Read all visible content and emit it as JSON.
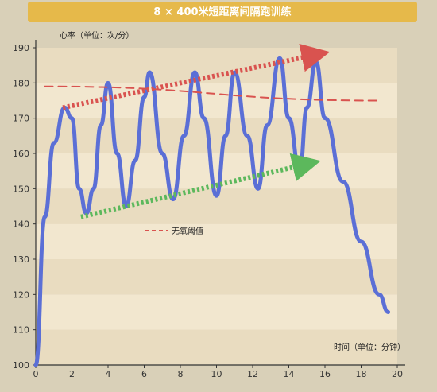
{
  "chart_data": {
    "type": "line",
    "title": "8 × 400米短距离间隔跑训练",
    "xlabel": "时间（单位：分钟）",
    "ylabel": "心率（单位：次/分）",
    "xlim": [
      0,
      20
    ],
    "ylim": [
      100,
      190
    ],
    "x_ticks": [
      "0",
      "2",
      "4",
      "6",
      "8",
      "10",
      "12",
      "14",
      "16",
      "18",
      "20"
    ],
    "y_ticks": [
      "100",
      "110",
      "120",
      "130",
      "140",
      "150",
      "160",
      "170",
      "180",
      "190"
    ],
    "grid": "horizontal bands",
    "legend": [
      {
        "label": "无氧阈值",
        "color": "#d9534f",
        "style": "dashed"
      }
    ],
    "series": [
      {
        "color": "#5b6fd6",
        "points": [
          [
            0.0,
            100
          ],
          [
            0.5,
            142
          ],
          [
            1.0,
            163
          ],
          [
            1.6,
            173
          ],
          [
            2.0,
            170
          ],
          [
            2.4,
            150
          ],
          [
            2.8,
            143
          ],
          [
            3.2,
            150
          ],
          [
            3.6,
            168
          ],
          [
            4.0,
            180
          ],
          [
            4.5,
            160
          ],
          [
            5.0,
            145
          ],
          [
            5.5,
            158
          ],
          [
            6.0,
            176
          ],
          [
            6.3,
            183
          ],
          [
            7.0,
            160
          ],
          [
            7.6,
            147
          ],
          [
            8.2,
            165
          ],
          [
            8.8,
            183
          ],
          [
            9.3,
            170
          ],
          [
            10.0,
            148
          ],
          [
            10.5,
            165
          ],
          [
            11.0,
            183
          ],
          [
            11.7,
            165
          ],
          [
            12.3,
            150
          ],
          [
            12.8,
            168
          ],
          [
            13.5,
            187
          ],
          [
            14.0,
            170
          ],
          [
            14.6,
            155
          ],
          [
            15.0,
            173
          ],
          [
            15.5,
            186
          ],
          [
            16.0,
            170
          ],
          [
            17.0,
            152
          ],
          [
            18.0,
            135
          ],
          [
            19.0,
            120
          ],
          [
            19.5,
            115
          ]
        ]
      },
      {
        "color": "#d9534f",
        "style": "dashed",
        "points": [
          [
            0.5,
            179
          ],
          [
            19.0,
            175
          ]
        ]
      }
    ],
    "annotations": [
      {
        "type": "arrow",
        "color": "#d9534f",
        "style": "dotted",
        "from": [
          1.5,
          173
        ],
        "to": [
          15.5,
          188
        ]
      },
      {
        "type": "arrow",
        "color": "#5cb85c",
        "style": "dotted",
        "from": [
          2.5,
          142
        ],
        "to": [
          15.0,
          157
        ]
      }
    ]
  }
}
